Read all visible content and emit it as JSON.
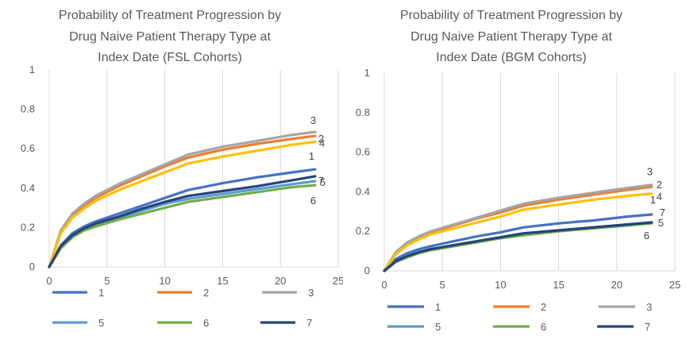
{
  "chart_data": [
    {
      "type": "line",
      "title_lines": [
        "Probability of Treatment Progression by",
        "Drug Naive Patient Therapy Type at",
        "Index Date (FSL Cohorts)"
      ],
      "xlim": [
        0,
        25
      ],
      "ylim": [
        0,
        1
      ],
      "xticks": [
        "0",
        "5",
        "10",
        "15",
        "20",
        "25"
      ],
      "yticks": [
        "0",
        "0.2",
        "0.4",
        "0.6",
        "0.8",
        "1"
      ],
      "grid": "vertical",
      "legend": "bottom",
      "x": [
        0,
        1,
        2,
        3,
        4,
        6,
        8,
        10,
        12,
        15,
        18,
        21,
        23
      ],
      "series": [
        {
          "name": "1",
          "color": "#4472C4",
          "end_label": "1",
          "values": [
            0.0,
            0.11,
            0.17,
            0.205,
            0.23,
            0.27,
            0.31,
            0.35,
            0.39,
            0.425,
            0.455,
            0.48,
            0.495
          ]
        },
        {
          "name": "2",
          "color": "#ED7D31",
          "end_label": "2",
          "values": [
            0.0,
            0.18,
            0.26,
            0.31,
            0.35,
            0.41,
            0.46,
            0.51,
            0.555,
            0.595,
            0.625,
            0.65,
            0.665
          ]
        },
        {
          "name": "3",
          "color": "#A5A5A5",
          "end_label": "3",
          "values": [
            0.0,
            0.185,
            0.27,
            0.32,
            0.36,
            0.42,
            0.47,
            0.52,
            0.57,
            0.61,
            0.64,
            0.67,
            0.685
          ]
        },
        {
          "name": "4",
          "color": "#FFC000",
          "end_label": "4",
          "values": [
            0.0,
            0.17,
            0.25,
            0.295,
            0.335,
            0.39,
            0.435,
            0.48,
            0.525,
            0.56,
            0.59,
            0.62,
            0.635
          ]
        },
        {
          "name": "5",
          "color": "#5B9BD5",
          "end_label": "5",
          "values": [
            0.0,
            0.1,
            0.155,
            0.19,
            0.215,
            0.25,
            0.285,
            0.32,
            0.345,
            0.37,
            0.395,
            0.42,
            0.435
          ]
        },
        {
          "name": "6",
          "color": "#70AD47",
          "end_label": "6",
          "values": [
            0.0,
            0.095,
            0.15,
            0.185,
            0.205,
            0.24,
            0.27,
            0.3,
            0.33,
            0.355,
            0.38,
            0.405,
            0.415
          ]
        },
        {
          "name": "7",
          "color": "#264478",
          "end_label": "7",
          "values": [
            0.0,
            0.105,
            0.16,
            0.195,
            0.22,
            0.255,
            0.295,
            0.33,
            0.36,
            0.385,
            0.41,
            0.44,
            0.46
          ]
        }
      ]
    },
    {
      "type": "line",
      "title_lines": [
        "Probability of Treatment Progression by",
        "Drug Naive Patient Therapy Type at",
        "Index Date (BGM Cohorts)"
      ],
      "xlim": [
        0,
        25
      ],
      "ylim": [
        0,
        1
      ],
      "xticks": [
        "0",
        "5",
        "10",
        "15",
        "20",
        "25"
      ],
      "yticks": [
        "0",
        "0.2",
        "0.4",
        "0.6",
        "0.8",
        "1"
      ],
      "grid": "vertical",
      "legend": "bottom",
      "x": [
        0,
        1,
        2,
        3,
        4,
        6,
        8,
        10,
        12,
        15,
        18,
        21,
        23
      ],
      "series": [
        {
          "name": "1",
          "color": "#4472C4",
          "end_label": "1",
          "values": [
            0.0,
            0.06,
            0.09,
            0.11,
            0.125,
            0.15,
            0.175,
            0.195,
            0.22,
            0.24,
            0.255,
            0.275,
            0.285
          ]
        },
        {
          "name": "2",
          "color": "#ED7D31",
          "end_label": "2",
          "values": [
            0.0,
            0.09,
            0.14,
            0.17,
            0.195,
            0.23,
            0.265,
            0.295,
            0.33,
            0.36,
            0.385,
            0.41,
            0.425
          ]
        },
        {
          "name": "3",
          "color": "#A5A5A5",
          "end_label": "3",
          "values": [
            0.0,
            0.095,
            0.145,
            0.175,
            0.2,
            0.235,
            0.27,
            0.305,
            0.34,
            0.37,
            0.395,
            0.42,
            0.435
          ]
        },
        {
          "name": "4",
          "color": "#FFC000",
          "end_label": "4",
          "values": [
            0.0,
            0.085,
            0.13,
            0.16,
            0.185,
            0.215,
            0.245,
            0.275,
            0.31,
            0.335,
            0.36,
            0.38,
            0.39
          ]
        },
        {
          "name": "5",
          "color": "#5B9BD5",
          "end_label": "5",
          "values": [
            0.0,
            0.05,
            0.075,
            0.095,
            0.11,
            0.13,
            0.15,
            0.17,
            0.19,
            0.205,
            0.22,
            0.235,
            0.245
          ]
        },
        {
          "name": "6",
          "color": "#70AD47",
          "end_label": "6",
          "values": [
            0.0,
            0.045,
            0.07,
            0.09,
            0.105,
            0.125,
            0.145,
            0.165,
            0.18,
            0.2,
            0.215,
            0.23,
            0.24
          ]
        },
        {
          "name": "7",
          "color": "#264478",
          "end_label": "7",
          "values": [
            0.0,
            0.05,
            0.075,
            0.095,
            0.11,
            0.13,
            0.15,
            0.17,
            0.19,
            0.205,
            0.22,
            0.235,
            0.245
          ]
        }
      ]
    }
  ]
}
